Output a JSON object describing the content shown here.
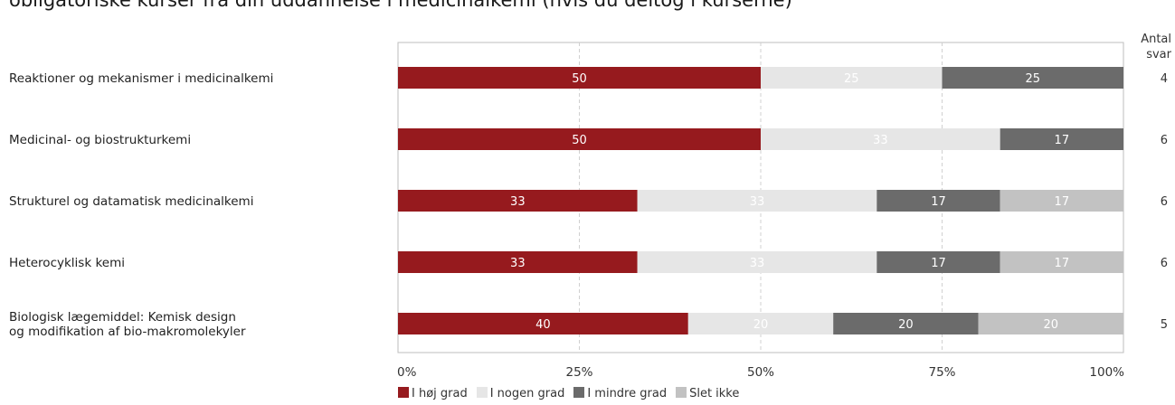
{
  "title": "obligatoriske kurser fra din uddannelse i medicinalkemi (hvis du deltog i kurserne)",
  "count_header": [
    "Antal",
    "svar"
  ],
  "legend": [
    {
      "label": "I høj grad",
      "color": "#961a1e"
    },
    {
      "label": "I nogen grad",
      "color": "#e6e6e6"
    },
    {
      "label": "I mindre grad",
      "color": "#6b6b6b"
    },
    {
      "label": "Slet ikke",
      "color": "#c2c2c2"
    }
  ],
  "chart_data": {
    "type": "bar",
    "orientation": "horizontal",
    "stacked": true,
    "percent": true,
    "categories": [
      "Reaktioner og mekanismer i medicinalkemi",
      "Medicinal- og biostrukturkemi",
      "Strukturel og datamatisk medicinalkemi",
      "Heterocyklisk kemi",
      "Biologisk lægemiddel: Kemisk design og modifikation af bio-makromolekyler"
    ],
    "series": [
      {
        "name": "I høj grad",
        "values": [
          50,
          50,
          33,
          33,
          40
        ]
      },
      {
        "name": "I nogen grad",
        "values": [
          25,
          33,
          33,
          33,
          20
        ]
      },
      {
        "name": "I mindre grad",
        "values": [
          25,
          17,
          17,
          17,
          20
        ]
      },
      {
        "name": "Slet ikke",
        "values": [
          0,
          0,
          17,
          17,
          20
        ]
      }
    ],
    "counts": [
      4,
      6,
      6,
      6,
      5
    ],
    "xlim": [
      0,
      100
    ],
    "xticks": [
      "0%",
      "25%",
      "50%",
      "75%",
      "100%"
    ],
    "grid": true,
    "legend_position": "bottom"
  }
}
